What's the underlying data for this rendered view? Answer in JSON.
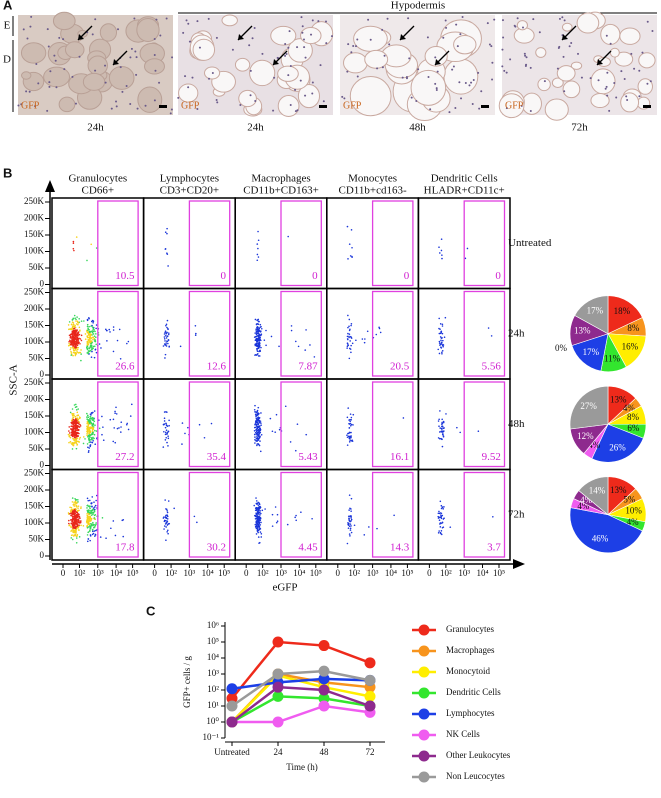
{
  "panel_a": {
    "label": "A",
    "layers": [
      "E",
      "D"
    ],
    "region": "Hypodermis",
    "images": [
      {
        "stain": "GFP",
        "time": "24h"
      },
      {
        "stain": "GFP",
        "time": "24h"
      },
      {
        "stain": "GFP",
        "time": "48h"
      },
      {
        "stain": "GFP",
        "time": "72h"
      }
    ]
  },
  "panel_b": {
    "label": "B",
    "columns": [
      {
        "population": "Granulocytes",
        "markers": "CD66+"
      },
      {
        "population": "Lymphocytes",
        "markers": "CD3+CD20+"
      },
      {
        "population": "Macrophages",
        "markers": "CD11b+CD163+"
      },
      {
        "population": "Monocytes",
        "markers": "CD11b+cd163-"
      },
      {
        "population": "Dendritic Cells",
        "markers": "HLADR+CD11c+"
      }
    ],
    "rows": [
      "Untreated",
      "24h",
      "48h",
      "72h"
    ],
    "gate_percentages": [
      [
        10.5,
        0,
        0,
        0,
        0
      ],
      [
        26.6,
        12.6,
        7.87,
        20.5,
        5.56
      ],
      [
        27.2,
        35.4,
        5.43,
        16.1,
        9.52
      ],
      [
        17.8,
        30.2,
        4.45,
        14.3,
        3.7
      ]
    ],
    "y_axis_label": "SSC-A",
    "y_tick_labels": [
      "250K",
      "200K",
      "150K",
      "100K",
      "50K",
      "0"
    ],
    "x_axis_label": "eGFP",
    "x_tick_labels": [
      "0",
      "10²",
      "10³",
      "10⁴",
      "10⁵"
    ]
  },
  "chart_data": [
    {
      "type": "pie",
      "values": [
        18,
        8,
        16,
        11,
        17,
        0,
        13,
        17
      ],
      "value_labels": [
        "18%",
        "8%",
        "16%",
        "11%",
        "17%",
        "0%",
        "13%",
        "17%"
      ],
      "colors": [
        "#ee2a1b",
        "#f7941d",
        "#ffee00",
        "#33e62e",
        "#1d3fe6",
        "#f05cf0",
        "#8e2a8e",
        "#9a9a9a"
      ]
    },
    {
      "type": "pie",
      "values": [
        13,
        4,
        8,
        6,
        26,
        4,
        12,
        27
      ],
      "value_labels": [
        "13%",
        "4%",
        "8%",
        "6%",
        "26%",
        "4%",
        "12%",
        "27%"
      ],
      "colors": [
        "#ee2a1b",
        "#f7941d",
        "#ffee00",
        "#33e62e",
        "#1d3fe6",
        "#f05cf0",
        "#8e2a8e",
        "#9a9a9a"
      ]
    },
    {
      "type": "pie",
      "values": [
        13,
        5,
        10,
        4,
        46,
        4,
        4,
        14
      ],
      "value_labels": [
        "13%",
        "5%",
        "10%",
        "4%",
        "46%",
        "4%",
        "4%",
        "14%"
      ],
      "colors": [
        "#ee2a1b",
        "#f7941d",
        "#ffee00",
        "#33e62e",
        "#1d3fe6",
        "#f05cf0",
        "#8e2a8e",
        "#9a9a9a"
      ]
    },
    {
      "type": "line",
      "label": "C",
      "y_label": "GFP+ cells / g",
      "x_label": "Time (h)",
      "categories": [
        "Untreated",
        "24",
        "48",
        "72"
      ],
      "yscale": "log",
      "ylim": [
        0.1,
        1000000
      ],
      "yticks": [
        {
          "value": 0.1,
          "label": "10⁻¹"
        },
        {
          "value": 1,
          "label": "10⁰"
        },
        {
          "value": 10,
          "label": "10¹"
        },
        {
          "value": 100,
          "label": "10²"
        },
        {
          "value": 1000,
          "label": "10³"
        },
        {
          "value": 10000,
          "label": "10⁴"
        },
        {
          "value": 100000,
          "label": "10⁵"
        },
        {
          "value": 1000000,
          "label": "10⁶"
        }
      ],
      "series": [
        {
          "name": "Granulocytes",
          "color": "#ee2a1b",
          "values": [
            30,
            100000,
            60000,
            5000
          ]
        },
        {
          "name": "Macrophages",
          "color": "#f7941d",
          "values": [
            1,
            1000,
            300,
            150
          ]
        },
        {
          "name": "Monocytoid",
          "color": "#ffee00",
          "values": [
            1,
            800,
            150,
            40
          ]
        },
        {
          "name": "Dendritic Cells",
          "color": "#33e62e",
          "values": [
            1,
            40,
            30,
            10
          ]
        },
        {
          "name": "Lymphocytes",
          "color": "#1d3fe6",
          "values": [
            120,
            300,
            500,
            400
          ]
        },
        {
          "name": "NK Cells",
          "color": "#f05cf0",
          "values": [
            1,
            1,
            10,
            4
          ]
        },
        {
          "name": "Other Leukocytes",
          "color": "#8e2a8e",
          "values": [
            1,
            150,
            100,
            10
          ]
        },
        {
          "name": "Non Leucocytes",
          "color": "#9a9a9a",
          "values": [
            10,
            1000,
            1500,
            400
          ]
        }
      ]
    }
  ]
}
